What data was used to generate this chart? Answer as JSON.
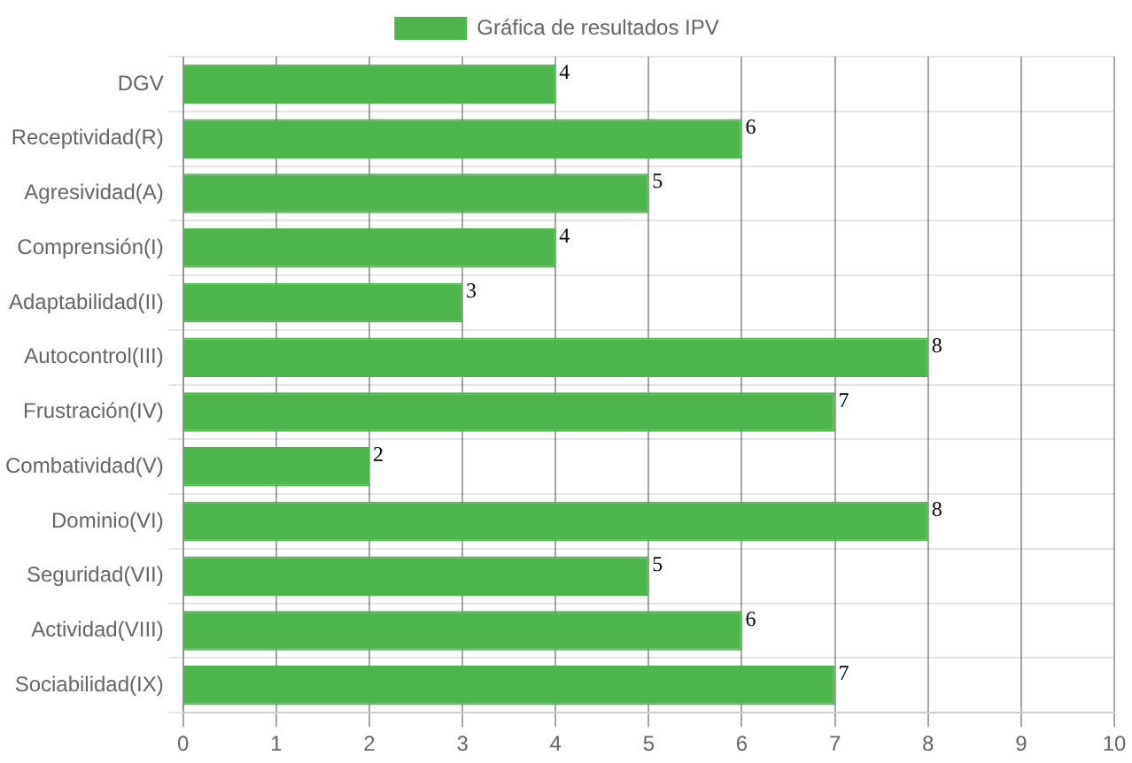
{
  "chart_data": {
    "type": "bar",
    "orientation": "horizontal",
    "categories": [
      "DGV",
      "Receptividad(R)",
      "Agresividad(A)",
      "Comprensión(I)",
      "Adaptabilidad(II)",
      "Autocontrol(III)",
      "Frustración(IV)",
      "Combatividad(V)",
      "Dominio(VI)",
      "Seguridad(VII)",
      "Actividad(VIII)",
      "Sociabilidad(IX)"
    ],
    "series": [
      {
        "name": "Gráfica de resultados IPV",
        "color": "#4cb54c",
        "values": [
          4,
          6,
          5,
          4,
          3,
          8,
          7,
          2,
          8,
          5,
          6,
          7
        ]
      }
    ],
    "xlim": [
      0,
      10
    ],
    "xticks": [
      0,
      1,
      2,
      3,
      4,
      5,
      6,
      7,
      8,
      9,
      10
    ],
    "grid": true,
    "legend": "top",
    "data_labels": true
  }
}
